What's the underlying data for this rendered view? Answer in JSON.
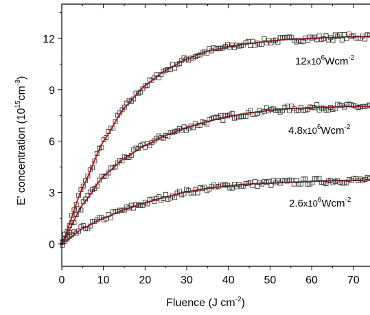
{
  "chart_data": {
    "type": "scatter",
    "title": "",
    "xlabel": {
      "main": "Fluence (J cm",
      "sup": "-2",
      "tail": ")"
    },
    "ylabel": {
      "main": "E' concentration (10",
      "sup1": "15",
      "mid": "cm",
      "sup2": "-3",
      "tail": ")"
    },
    "xlim": [
      0,
      74
    ],
    "ylim": [
      -1.3,
      14
    ],
    "xticks": [
      0,
      10,
      20,
      30,
      40,
      50,
      60,
      70
    ],
    "yticks": [
      0,
      3,
      6,
      9,
      12
    ],
    "grid": false,
    "legend": "none",
    "marker": "open-square",
    "marker_color": "#333333",
    "fit_color": "#e01010",
    "series": [
      {
        "label": {
          "pre": "12",
          "x": "x10",
          "sup1": "6",
          "unit": "Wcm",
          "sup2": "-2"
        },
        "x": [
          0,
          5,
          10,
          15,
          20,
          25,
          30,
          35,
          40,
          45,
          50,
          55,
          60,
          65,
          70,
          74
        ],
        "values": [
          0,
          3.3,
          6.0,
          7.95,
          9.25,
          10.15,
          10.8,
          11.25,
          11.5,
          11.7,
          11.85,
          11.95,
          12.0,
          12.05,
          12.1,
          12.12
        ]
      },
      {
        "label": {
          "pre": "4.8",
          "x": "x10",
          "sup1": "6",
          "unit": "Wcm",
          "sup2": "-2"
        },
        "x": [
          0,
          5,
          10,
          15,
          20,
          25,
          30,
          35,
          40,
          45,
          50,
          55,
          60,
          65,
          70,
          74
        ],
        "values": [
          0,
          2.3,
          3.95,
          5.0,
          5.75,
          6.35,
          6.8,
          7.15,
          7.45,
          7.65,
          7.8,
          7.9,
          7.95,
          8.0,
          8.02,
          8.03
        ]
      },
      {
        "label": {
          "pre": "2.6",
          "x": "x10",
          "sup1": "6",
          "unit": "Wcm",
          "sup2": "-2"
        },
        "x": [
          0,
          5,
          10,
          15,
          20,
          25,
          30,
          35,
          40,
          45,
          50,
          55,
          60,
          65,
          70,
          74
        ],
        "values": [
          0,
          0.9,
          1.5,
          2.0,
          2.4,
          2.75,
          3.05,
          3.25,
          3.4,
          3.5,
          3.55,
          3.6,
          3.65,
          3.7,
          3.72,
          3.73
        ]
      }
    ]
  }
}
